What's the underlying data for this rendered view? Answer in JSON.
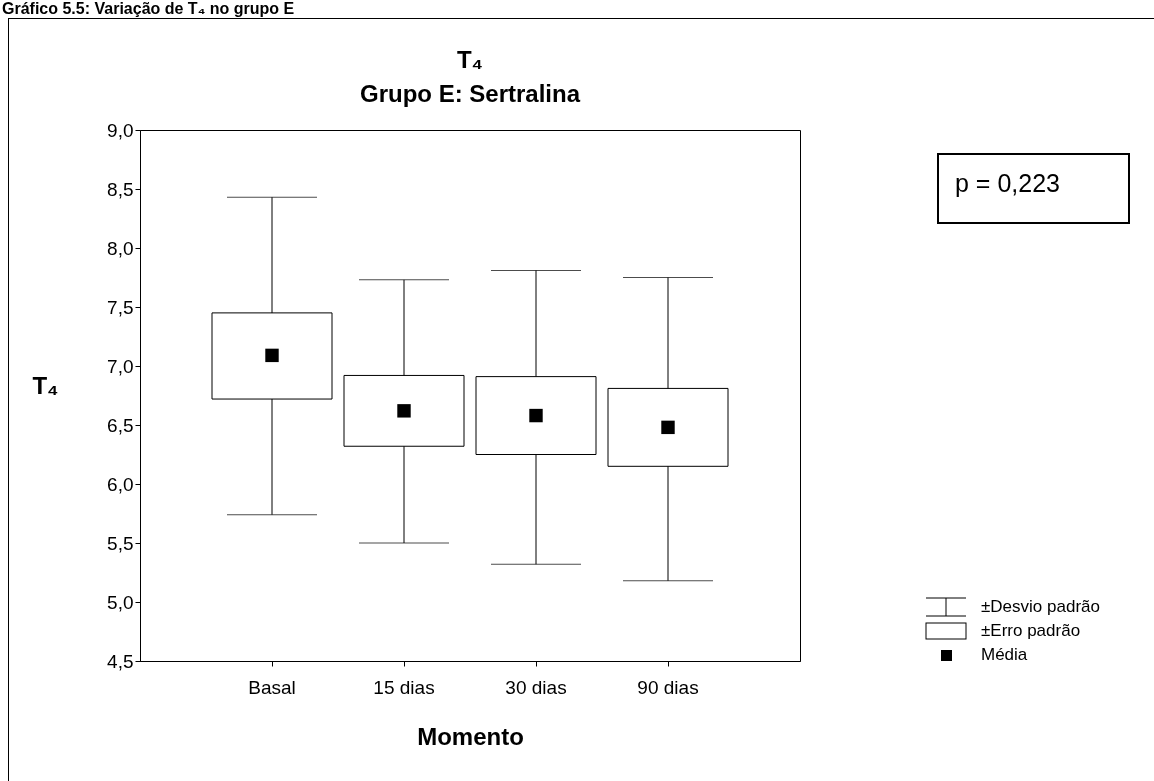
{
  "chart_data": {
    "type": "box",
    "title": "T₄",
    "subtitle": "Grupo E: Sertralina",
    "xlabel": "Momento",
    "ylabel": "T₄",
    "categories": [
      "Basal",
      "15 dias",
      "30 dias",
      "90 dias"
    ],
    "boxes": [
      {
        "low": 5.74,
        "q1": 6.72,
        "median": 7.09,
        "q3": 7.45,
        "high": 8.43
      },
      {
        "low": 5.5,
        "q1": 6.32,
        "median": 6.62,
        "q3": 6.92,
        "high": 7.73
      },
      {
        "low": 5.32,
        "q1": 6.25,
        "median": 6.58,
        "q3": 6.91,
        "high": 7.81
      },
      {
        "low": 5.18,
        "q1": 6.15,
        "median": 6.48,
        "q3": 6.81,
        "high": 7.75
      }
    ],
    "ylim": [
      4.5,
      9
    ],
    "yticks": [
      {
        "value": 4.5,
        "label": "4,5"
      },
      {
        "value": 5,
        "label": "5,0"
      },
      {
        "value": 5.5,
        "label": "5,5"
      },
      {
        "value": 6,
        "label": "6,0"
      },
      {
        "value": 6.5,
        "label": "6,5"
      },
      {
        "value": 7,
        "label": "7,0"
      },
      {
        "value": 7.5,
        "label": "7,5"
      },
      {
        "value": 8,
        "label": "8,0"
      },
      {
        "value": 8.5,
        "label": "8,5"
      },
      {
        "value": 9,
        "label": "9,0"
      }
    ],
    "marker": "square",
    "grid": false,
    "annotations": [
      "Gráfico 5.5: Variação de T₄ no grupo E",
      "p = 0,223",
      "±Desvio padrão",
      "±Erro padrão",
      "Média"
    ]
  }
}
